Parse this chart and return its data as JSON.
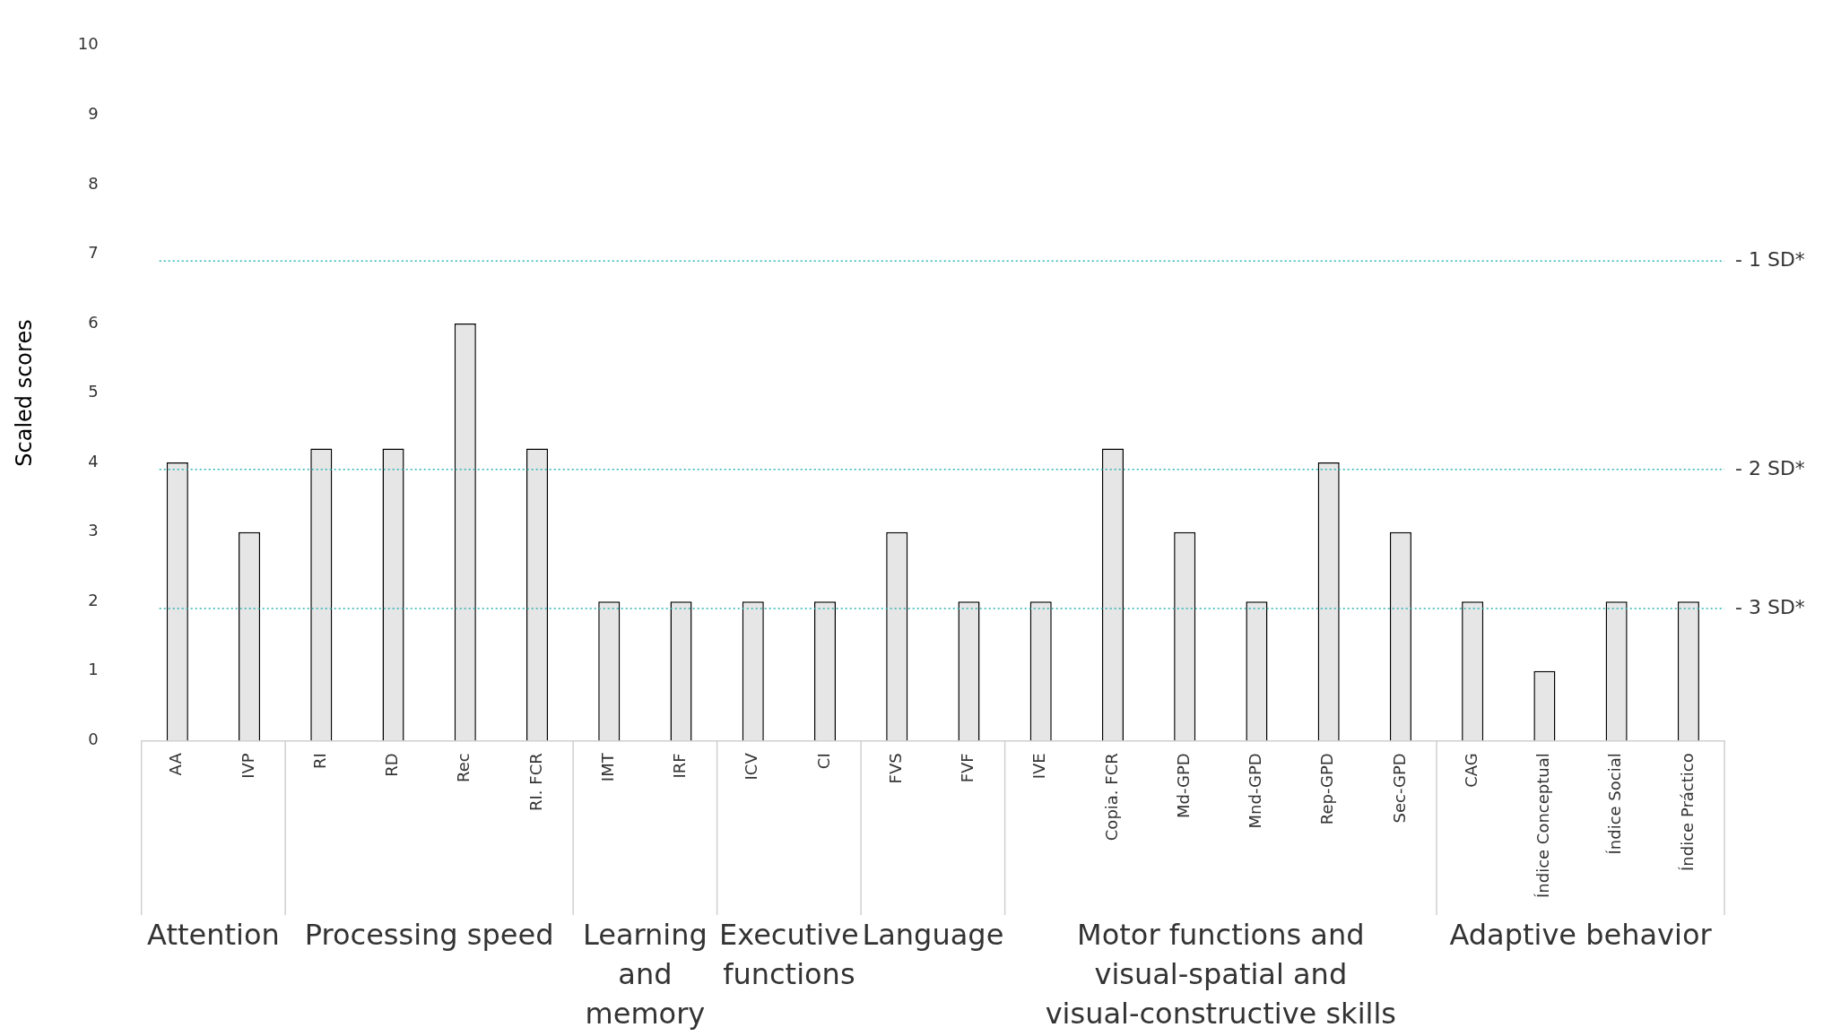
{
  "chart_data": {
    "type": "bar",
    "ylabel": "Scaled scores",
    "categories": [
      "AA",
      "IVP",
      "RI",
      "RD",
      "Rec",
      "RI. FCR",
      "IMT",
      "IRF",
      "ICV",
      "CI",
      "FVS",
      "FVF",
      "IVE",
      "Copia. FCR",
      "Md-GPD",
      "Mnd-GPD",
      "Rep-GPD",
      "Sec-GPD",
      "CAG",
      "Índice Conceptual",
      "Índice Social",
      "Índice Práctico"
    ],
    "values": [
      4,
      3,
      4.2,
      4.2,
      6,
      4.2,
      2,
      2,
      2,
      2,
      3,
      2,
      2,
      4.2,
      3,
      2,
      4,
      3,
      2,
      1,
      2,
      2
    ],
    "color": "#e6e6e6",
    "ylim": [
      0,
      10
    ],
    "yticks": [
      0,
      1,
      2,
      3,
      4,
      5,
      6,
      7,
      8,
      9,
      10
    ],
    "grid": false,
    "ref_lines": [
      {
        "axis": "y",
        "value": 6.9,
        "label": "- 1 SD*",
        "color": "#2ab3b3",
        "line_style": "dotted"
      },
      {
        "axis": "y",
        "value": 3.9,
        "label": "- 2 SD*",
        "color": "#2ab3b3",
        "line_style": "dotted"
      },
      {
        "axis": "y",
        "value": 1.9,
        "label": "- 3 SD*",
        "color": "#2ab3b3",
        "line_style": "dotted"
      }
    ],
    "annotations": [
      "Attention",
      "Processing speed",
      "Learning and memory",
      "Executive functions",
      "Language",
      "Motor functions and visual-spatial and visual-constructive skills",
      "Adaptive behavior"
    ]
  }
}
